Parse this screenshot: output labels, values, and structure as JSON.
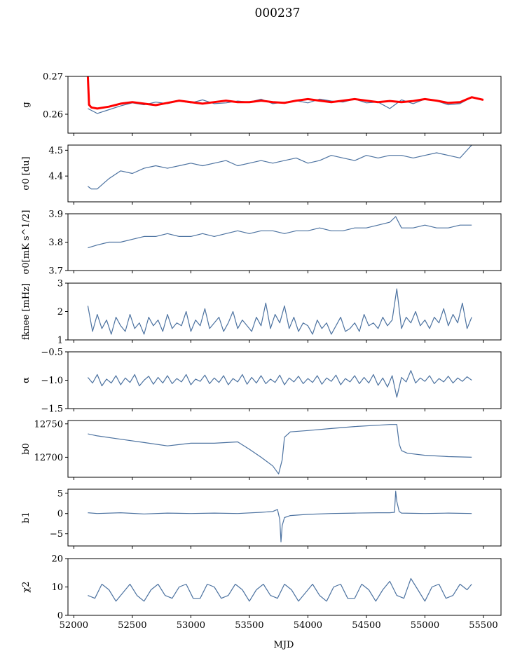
{
  "figure": {
    "title": "000237",
    "xlabel": "MJD"
  },
  "chart_data": [
    {
      "type": "line",
      "ylabel": "g",
      "ylim": [
        0.255,
        0.27
      ],
      "yticks": [
        0.26,
        0.27
      ],
      "ytick_labels": [
        "0.26",
        "0.27"
      ],
      "xlim": [
        51950,
        55650
      ],
      "series": [
        {
          "color": "#4c72a0",
          "x": [
            52120,
            52200,
            52300,
            52400,
            52500,
            52600,
            52700,
            52800,
            52900,
            53000,
            53100,
            53200,
            53300,
            53400,
            53500,
            53600,
            53700,
            53800,
            53900,
            54000,
            54100,
            54200,
            54300,
            54400,
            54500,
            54600,
            54700,
            54800,
            54900,
            55000,
            55100,
            55200,
            55300,
            55400
          ],
          "y": [
            0.2615,
            0.2602,
            0.2612,
            0.2622,
            0.263,
            0.2625,
            0.2632,
            0.2628,
            0.2635,
            0.263,
            0.2638,
            0.2628,
            0.263,
            0.2635,
            0.2632,
            0.264,
            0.2628,
            0.2632,
            0.2636,
            0.263,
            0.264,
            0.2635,
            0.2632,
            0.264,
            0.263,
            0.2632,
            0.2615,
            0.2638,
            0.2628,
            0.264,
            0.2635,
            0.2625,
            0.2628,
            0.2645
          ]
        },
        {
          "color": "#ff0000",
          "x": [
            52120,
            52130,
            52150,
            52200,
            52300,
            52400,
            52500,
            52600,
            52700,
            52800,
            52900,
            53000,
            53100,
            53200,
            53300,
            53400,
            53500,
            53600,
            53700,
            53800,
            53900,
            54000,
            54100,
            54200,
            54300,
            54400,
            54500,
            54600,
            54700,
            54800,
            54900,
            55000,
            55100,
            55200,
            55300,
            55400,
            55500
          ],
          "y": [
            0.27,
            0.2625,
            0.2618,
            0.2615,
            0.262,
            0.2628,
            0.2632,
            0.2628,
            0.2624,
            0.263,
            0.2636,
            0.2632,
            0.2628,
            0.2632,
            0.2636,
            0.2632,
            0.2632,
            0.2636,
            0.2632,
            0.263,
            0.2636,
            0.264,
            0.2636,
            0.2632,
            0.2636,
            0.264,
            0.2636,
            0.2632,
            0.2635,
            0.2632,
            0.2635,
            0.264,
            0.2636,
            0.263,
            0.2632,
            0.2645,
            0.2638
          ]
        }
      ]
    },
    {
      "type": "line",
      "ylabel": "σ0 [du]",
      "ylim": [
        4.3,
        4.52
      ],
      "yticks": [
        4.4,
        4.5
      ],
      "ytick_labels": [
        "4.4",
        "4.5"
      ],
      "xlim": [
        51950,
        55650
      ],
      "series": [
        {
          "color": "#4c72a0",
          "x": [
            52120,
            52150,
            52200,
            52250,
            52300,
            52400,
            52500,
            52600,
            52700,
            52800,
            52900,
            53000,
            53100,
            53200,
            53300,
            53400,
            53500,
            53600,
            53700,
            53800,
            53900,
            54000,
            54100,
            54200,
            54300,
            54400,
            54500,
            54600,
            54700,
            54800,
            54900,
            55000,
            55100,
            55200,
            55300,
            55400
          ],
          "y": [
            4.36,
            4.35,
            4.35,
            4.37,
            4.39,
            4.42,
            4.41,
            4.43,
            4.44,
            4.43,
            4.44,
            4.45,
            4.44,
            4.45,
            4.46,
            4.44,
            4.45,
            4.46,
            4.45,
            4.46,
            4.47,
            4.45,
            4.46,
            4.48,
            4.47,
            4.46,
            4.48,
            4.47,
            4.48,
            4.48,
            4.47,
            4.48,
            4.49,
            4.48,
            4.47,
            4.52
          ]
        }
      ]
    },
    {
      "type": "line",
      "ylabel": "σ0[mK s^1/2]",
      "ylim": [
        3.7,
        3.9
      ],
      "yticks": [
        3.7,
        3.8,
        3.9
      ],
      "ytick_labels": [
        "3.7",
        "3.8",
        "3.9"
      ],
      "xlim": [
        51950,
        55650
      ],
      "series": [
        {
          "color": "#4c72a0",
          "x": [
            52120,
            52200,
            52300,
            52400,
            52500,
            52600,
            52700,
            52800,
            52900,
            53000,
            53100,
            53200,
            53300,
            53400,
            53500,
            53600,
            53700,
            53800,
            53900,
            54000,
            54100,
            54200,
            54300,
            54400,
            54500,
            54600,
            54700,
            54750,
            54800,
            54900,
            55000,
            55100,
            55200,
            55300,
            55400
          ],
          "y": [
            3.78,
            3.79,
            3.8,
            3.8,
            3.81,
            3.82,
            3.82,
            3.83,
            3.82,
            3.82,
            3.83,
            3.82,
            3.83,
            3.84,
            3.83,
            3.84,
            3.84,
            3.83,
            3.84,
            3.84,
            3.85,
            3.84,
            3.84,
            3.85,
            3.85,
            3.86,
            3.87,
            3.89,
            3.85,
            3.85,
            3.86,
            3.85,
            3.85,
            3.86,
            3.86
          ]
        }
      ]
    },
    {
      "type": "line",
      "ylabel": "fknee [mHz]",
      "ylim": [
        1,
        3
      ],
      "yticks": [
        1,
        2,
        3
      ],
      "ytick_labels": [
        "1",
        "2",
        "3"
      ],
      "xlim": [
        51950,
        55650
      ],
      "series": [
        {
          "color": "#4c72a0",
          "x": [
            52120,
            52160,
            52200,
            52240,
            52280,
            52320,
            52360,
            52400,
            52440,
            52480,
            52520,
            52560,
            52600,
            52640,
            52680,
            52720,
            52760,
            52800,
            52840,
            52880,
            52920,
            52960,
            53000,
            53040,
            53080,
            53120,
            53160,
            53200,
            53240,
            53280,
            53320,
            53360,
            53400,
            53440,
            53480,
            53520,
            53560,
            53600,
            53640,
            53680,
            53720,
            53760,
            53800,
            53840,
            53880,
            53920,
            53960,
            54000,
            54040,
            54080,
            54120,
            54160,
            54200,
            54240,
            54280,
            54320,
            54360,
            54400,
            54440,
            54480,
            54520,
            54560,
            54600,
            54640,
            54680,
            54720,
            54760,
            54800,
            54840,
            54880,
            54920,
            54960,
            55000,
            55040,
            55080,
            55120,
            55160,
            55200,
            55240,
            55280,
            55320,
            55360,
            55400
          ],
          "y": [
            2.2,
            1.3,
            1.9,
            1.4,
            1.7,
            1.2,
            1.8,
            1.5,
            1.3,
            1.9,
            1.4,
            1.6,
            1.2,
            1.8,
            1.5,
            1.7,
            1.3,
            1.9,
            1.4,
            1.6,
            1.5,
            2.0,
            1.3,
            1.7,
            1.5,
            2.1,
            1.4,
            1.6,
            1.8,
            1.3,
            1.6,
            2.0,
            1.4,
            1.7,
            1.5,
            1.3,
            1.8,
            1.5,
            2.3,
            1.4,
            1.9,
            1.6,
            2.2,
            1.4,
            1.8,
            1.3,
            1.6,
            1.5,
            1.2,
            1.7,
            1.4,
            1.6,
            1.2,
            1.5,
            1.8,
            1.3,
            1.4,
            1.6,
            1.3,
            1.9,
            1.5,
            1.6,
            1.4,
            1.8,
            1.5,
            1.7,
            2.8,
            1.4,
            1.8,
            1.6,
            2.0,
            1.5,
            1.7,
            1.4,
            1.8,
            1.6,
            2.1,
            1.5,
            1.9,
            1.6,
            2.3,
            1.4,
            1.8
          ]
        }
      ]
    },
    {
      "type": "line",
      "ylabel": "α",
      "ylim": [
        -1.5,
        -0.5
      ],
      "yticks": [
        -1.5,
        -1.0,
        -0.5
      ],
      "ytick_labels": [
        "−1.5",
        "−1.0",
        "−0.5"
      ],
      "xlim": [
        51950,
        55650
      ],
      "series": [
        {
          "color": "#4c72a0",
          "x": [
            52120,
            52160,
            52200,
            52240,
            52280,
            52320,
            52360,
            52400,
            52440,
            52480,
            52520,
            52560,
            52600,
            52640,
            52680,
            52720,
            52760,
            52800,
            52840,
            52880,
            52920,
            52960,
            53000,
            53040,
            53080,
            53120,
            53160,
            53200,
            53240,
            53280,
            53320,
            53360,
            53400,
            53440,
            53480,
            53520,
            53560,
            53600,
            53640,
            53680,
            53720,
            53760,
            53800,
            53840,
            53880,
            53920,
            53960,
            54000,
            54040,
            54080,
            54120,
            54160,
            54200,
            54240,
            54280,
            54320,
            54360,
            54400,
            54440,
            54480,
            54520,
            54560,
            54600,
            54640,
            54680,
            54720,
            54760,
            54800,
            54840,
            54880,
            54920,
            54960,
            55000,
            55040,
            55080,
            55120,
            55160,
            55200,
            55240,
            55280,
            55320,
            55360,
            55400
          ],
          "y": [
            -0.95,
            -1.05,
            -0.9,
            -1.1,
            -0.98,
            -1.05,
            -0.92,
            -1.08,
            -0.96,
            -1.04,
            -0.9,
            -1.1,
            -1.0,
            -0.93,
            -1.07,
            -0.95,
            -1.05,
            -0.92,
            -1.06,
            -0.97,
            -1.03,
            -0.9,
            -1.08,
            -0.98,
            -1.02,
            -0.91,
            -1.06,
            -0.96,
            -1.04,
            -0.92,
            -1.08,
            -0.97,
            -1.03,
            -0.9,
            -1.07,
            -0.95,
            -1.05,
            -0.92,
            -1.06,
            -0.98,
            -1.04,
            -0.91,
            -1.08,
            -0.96,
            -1.03,
            -0.93,
            -1.06,
            -0.97,
            -1.04,
            -0.92,
            -1.07,
            -0.96,
            -1.02,
            -0.91,
            -1.08,
            -0.97,
            -1.03,
            -0.92,
            -1.06,
            -0.95,
            -1.05,
            -0.9,
            -1.09,
            -0.96,
            -1.12,
            -0.92,
            -1.3,
            -0.95,
            -1.03,
            -0.83,
            -1.05,
            -0.96,
            -1.02,
            -0.92,
            -1.06,
            -0.97,
            -1.03,
            -0.93,
            -1.05,
            -0.96,
            -1.02,
            -0.94,
            -1.0
          ]
        }
      ]
    },
    {
      "type": "line",
      "ylabel": "b0",
      "ylim": [
        12670,
        12755
      ],
      "yticks": [
        12700,
        12750
      ],
      "ytick_labels": [
        "12700",
        "12750"
      ],
      "xlim": [
        51950,
        55650
      ],
      "series": [
        {
          "color": "#4c72a0",
          "x": [
            52120,
            52200,
            52400,
            52600,
            52800,
            53000,
            53200,
            53400,
            53500,
            53600,
            53700,
            53750,
            53780,
            53800,
            53850,
            54000,
            54200,
            54400,
            54600,
            54700,
            54760,
            54780,
            54800,
            54850,
            55000,
            55200,
            55400
          ],
          "y": [
            12735,
            12732,
            12727,
            12722,
            12717,
            12721,
            12721,
            12723,
            12712,
            12700,
            12687,
            12675,
            12696,
            12730,
            12738,
            12740,
            12743,
            12746,
            12748,
            12749,
            12749,
            12720,
            12710,
            12706,
            12703,
            12701,
            12700
          ]
        }
      ]
    },
    {
      "type": "line",
      "ylabel": "b1",
      "ylim": [
        -8,
        6
      ],
      "yticks": [
        -5,
        0,
        5
      ],
      "ytick_labels": [
        "−5",
        "0",
        "5"
      ],
      "xlim": [
        51950,
        55650
      ],
      "series": [
        {
          "color": "#4c72a0",
          "x": [
            52120,
            52200,
            52400,
            52600,
            52800,
            53000,
            53200,
            53400,
            53600,
            53700,
            53740,
            53760,
            53770,
            53780,
            53800,
            53850,
            54000,
            54200,
            54400,
            54600,
            54700,
            54740,
            54750,
            54760,
            54780,
            54800,
            55000,
            55200,
            55400
          ],
          "y": [
            0.2,
            0.0,
            0.2,
            -0.1,
            0.1,
            0.0,
            0.1,
            0.0,
            0.3,
            0.5,
            1.0,
            -1.5,
            -7.0,
            -3.0,
            -1.0,
            -0.5,
            -0.2,
            0.0,
            0.1,
            0.2,
            0.2,
            0.3,
            5.5,
            3.0,
            0.5,
            0.1,
            0.0,
            0.1,
            0.0
          ]
        }
      ]
    },
    {
      "type": "line",
      "ylabel": "χ2",
      "ylim": [
        0,
        20
      ],
      "yticks": [
        0,
        10,
        20
      ],
      "ytick_labels": [
        "0",
        "10",
        "20"
      ],
      "xlim": [
        51950,
        55650
      ],
      "series": [
        {
          "color": "#4c72a0",
          "x": [
            52120,
            52180,
            52240,
            52300,
            52360,
            52420,
            52480,
            52540,
            52600,
            52660,
            52720,
            52780,
            52840,
            52900,
            52960,
            53020,
            53080,
            53140,
            53200,
            53260,
            53320,
            53380,
            53440,
            53500,
            53560,
            53620,
            53680,
            53740,
            53800,
            53860,
            53920,
            53980,
            54040,
            54100,
            54160,
            54220,
            54280,
            54340,
            54400,
            54460,
            54520,
            54580,
            54640,
            54700,
            54760,
            54820,
            54880,
            54940,
            55000,
            55060,
            55120,
            55180,
            55240,
            55300,
            55360,
            55400
          ],
          "y": [
            7,
            6,
            11,
            9,
            5,
            8,
            11,
            7,
            5,
            9,
            11,
            7,
            6,
            10,
            11,
            6,
            6,
            11,
            10,
            6,
            7,
            11,
            9,
            5,
            9,
            11,
            7,
            6,
            11,
            9,
            5,
            8,
            11,
            7,
            5,
            10,
            11,
            6,
            6,
            11,
            9,
            5,
            9,
            12,
            7,
            6,
            13,
            9,
            5,
            10,
            11,
            6,
            7,
            11,
            9,
            11
          ]
        }
      ]
    }
  ],
  "x_axis": {
    "ticks": [
      52000,
      52500,
      53000,
      53500,
      54000,
      54500,
      55000,
      55500
    ],
    "tick_labels": [
      "52000",
      "52500",
      "53000",
      "53500",
      "54000",
      "54500",
      "55000",
      "55500"
    ]
  }
}
